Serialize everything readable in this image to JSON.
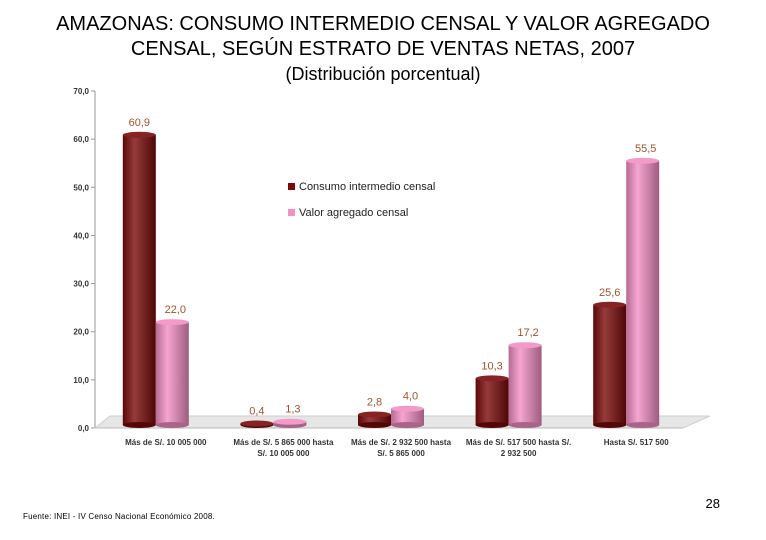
{
  "chart_data": {
    "type": "bar",
    "title_line1": "AMAZONAS: CONSUMO INTERMEDIO CENSAL Y VALOR AGREGADO",
    "title_line2": "CENSAL, SEGÚN ESTRATO DE VENTAS NETAS, 2007",
    "subtitle": "(Distribución porcentual)",
    "categories": [
      [
        "Más de S/. 10 005 000"
      ],
      [
        "Más de S/. 5 865 000  hasta",
        "S/. 10 005 000"
      ],
      [
        "Más de S/. 2 932 500  hasta",
        "S/. 5 865 000"
      ],
      [
        "Más de S/. 517 500  hasta S/.",
        "2 932 500"
      ],
      [
        "Hasta S/. 517 500"
      ]
    ],
    "series": [
      {
        "name": "Consumo intermedio censal",
        "color": "#7a0a0a",
        "values": [
          60.9,
          0.4,
          2.8,
          10.3,
          25.6
        ],
        "labels": [
          "60,9",
          "0,4",
          "2,8",
          "10,3",
          "25,6"
        ]
      },
      {
        "name": "Valor agregado censal",
        "color": "#f28fc4",
        "values": [
          22.0,
          1.3,
          4.0,
          17.2,
          55.5
        ],
        "labels": [
          "22,0",
          "1,3",
          "4,0",
          "17,2",
          "55,5"
        ]
      }
    ],
    "ylim": [
      0,
      70
    ],
    "yticks": [
      "0,0",
      "10,0",
      "20,0",
      "30,0",
      "40,0",
      "50,0",
      "60,0",
      "70,0"
    ],
    "label_color": "#a0522d"
  },
  "footer": {
    "page_number": "28",
    "source": "Fuente: INEI - IV Censo Nacional Económico 2008."
  }
}
